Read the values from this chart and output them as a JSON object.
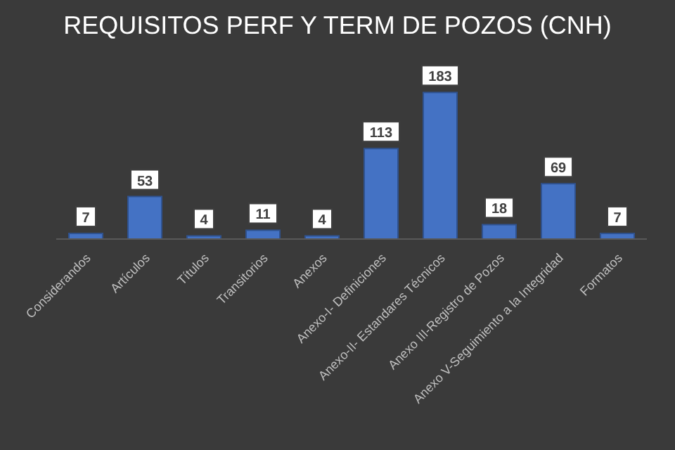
{
  "chart_data": {
    "type": "bar",
    "title": "REQUISITOS PERF Y TERM DE POZOS (CNH)",
    "categories": [
      "Considerandos",
      "Artículos",
      "Títulos",
      "Transitorios",
      "Anexos",
      "Anexo-I- Definiciones",
      "Anexo-II- Estandares Técnicos",
      "Anexo III-Registro de Pozos",
      "Anexo V-Seguimiento a la Integridad",
      "Formatos"
    ],
    "values": [
      7,
      53,
      4,
      11,
      4,
      113,
      183,
      18,
      69,
      7
    ],
    "color": "#4472c4",
    "data_labels": true,
    "tick_labels": "x",
    "grid": false,
    "legend": false
  }
}
